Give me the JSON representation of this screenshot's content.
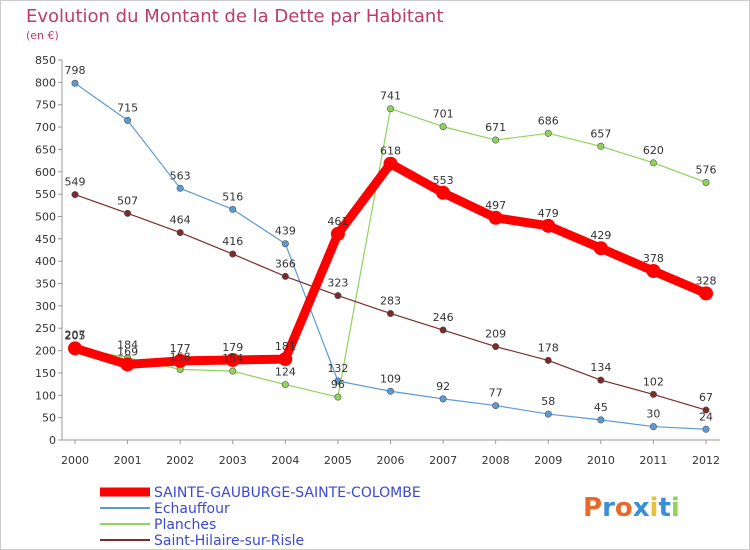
{
  "chart_data": {
    "type": "line",
    "title": "Evolution du Montant de la Dette par Habitant",
    "subtitle": "(en €)",
    "xlabel": "",
    "ylabel": "",
    "categories": [
      "2000",
      "2001",
      "2002",
      "2003",
      "2004",
      "2005",
      "2006",
      "2007",
      "2008",
      "2009",
      "2010",
      "2011",
      "2012"
    ],
    "ylim": [
      0,
      850
    ],
    "yticks": [
      0,
      50,
      100,
      150,
      200,
      250,
      300,
      350,
      400,
      450,
      500,
      550,
      600,
      650,
      700,
      750,
      800,
      850
    ],
    "grid": false,
    "legend_position": "bottom-left",
    "series": [
      {
        "name": "SAINTE-GAUBURGE-SAINTE-COLOMBE",
        "color": "#ff0000",
        "values": [
          205,
          169,
          177,
          179,
          181,
          461,
          618,
          553,
          497,
          479,
          429,
          378,
          328
        ],
        "labels": [
          "205",
          "169",
          "177",
          "179",
          "181",
          "461",
          "618",
          "553",
          "497",
          "479",
          "429",
          "378",
          "328"
        ],
        "emphasis": true
      },
      {
        "name": "Echauffour",
        "color": "#5b9bd5",
        "values": [
          798,
          715,
          563,
          516,
          439,
          132,
          109,
          92,
          77,
          58,
          45,
          30,
          24
        ],
        "labels": [
          "798",
          "715",
          "563",
          "516",
          "439",
          "132",
          "109",
          "92",
          "77",
          "58",
          "45",
          "30",
          "24"
        ]
      },
      {
        "name": "Planches",
        "color": "#8ed35a",
        "values": [
          207,
          184,
          158,
          154,
          124,
          96,
          741,
          701,
          671,
          686,
          657,
          620,
          576
        ],
        "labels": [
          "207",
          "184",
          "158",
          "154",
          "124",
          "96",
          "741",
          "701",
          "671",
          "686",
          "657",
          "620",
          "576"
        ]
      },
      {
        "name": "Saint-Hilaire-sur-Risle",
        "color": "#7b2b2b",
        "values": [
          549,
          507,
          464,
          416,
          366,
          323,
          283,
          246,
          209,
          178,
          134,
          102,
          67
        ],
        "labels": [
          "549",
          "507",
          "464",
          "416",
          "366",
          "323",
          "283",
          "246",
          "209",
          "178",
          "134",
          "102",
          "67"
        ]
      }
    ]
  },
  "brand": {
    "text": "Proxiti",
    "colors": [
      "#e8692a",
      "#3a8fd8",
      "#e8692a",
      "#3a8fd8",
      "#e8c13a",
      "#3a8fd8",
      "#8ed35a"
    ]
  }
}
